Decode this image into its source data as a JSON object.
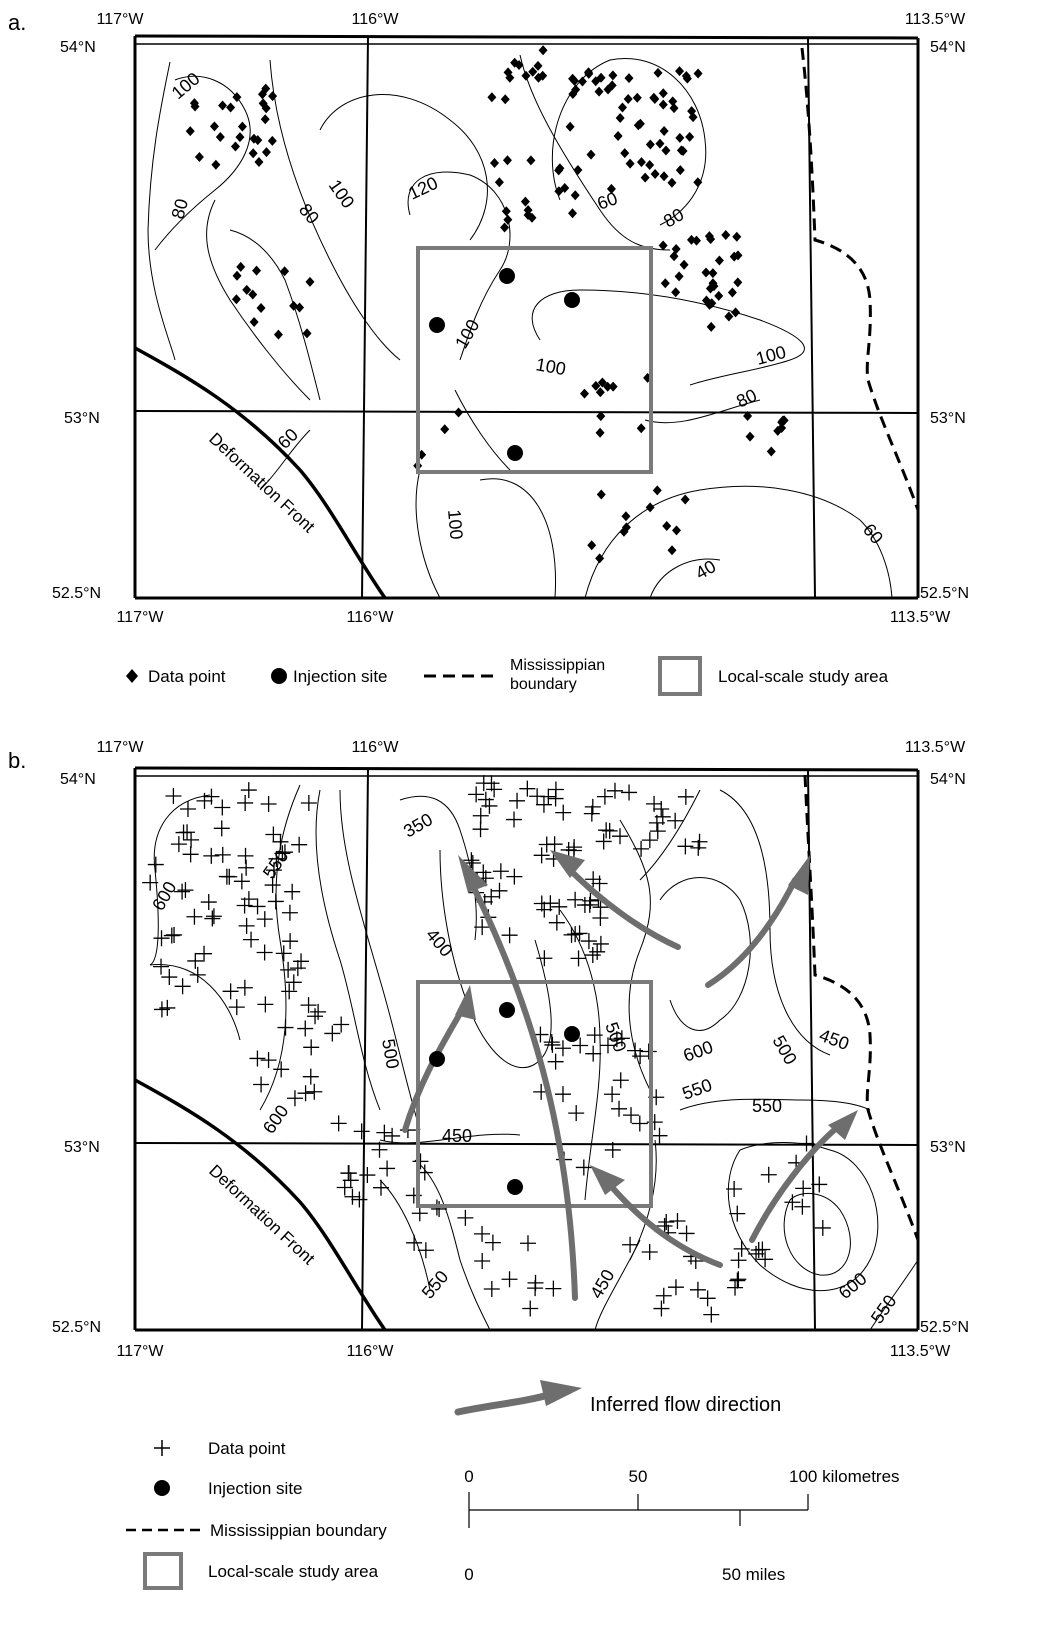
{
  "panel_a": {
    "label": "a.",
    "lon_top": [
      "117°W",
      "116°W",
      "113.5°W"
    ],
    "lon_bottom": [
      "117°W",
      "116°W",
      "113.5°W"
    ],
    "lat_left": [
      "54°N",
      "53°N",
      "52.5°N"
    ],
    "lat_right": [
      "54°N",
      "53°N",
      "52.5°N"
    ],
    "contour_labels": [
      "100",
      "80",
      "80",
      "100",
      "120",
      "60",
      "80",
      "100",
      "100",
      "100",
      "80",
      "60",
      "100",
      "40",
      "60"
    ],
    "deformation_front": "Deformation Front",
    "legend": {
      "data_point": "Data point",
      "injection_site": "Injection site",
      "mississippian_boundary": "Mississippian boundary",
      "local_scale": "Local-scale study area"
    }
  },
  "panel_b": {
    "label": "b.",
    "lon_top": [
      "117°W",
      "116°W",
      "113.5°W"
    ],
    "lon_bottom": [
      "117°W",
      "116°W",
      "113.5°W"
    ],
    "lat_left": [
      "54°N",
      "53°N",
      "52.5°N"
    ],
    "lat_right": [
      "54°N",
      "53°N",
      "52.5°N"
    ],
    "contour_labels": [
      "600",
      "550",
      "350",
      "400",
      "500",
      "500",
      "600",
      "500",
      "450",
      "550",
      "550",
      "450",
      "600",
      "450",
      "550",
      "600",
      "550"
    ],
    "deformation_front": "Deformation Front",
    "inferred_flow": "Inferred flow direction",
    "legend": {
      "data_point": "Data point",
      "injection_site": "Injection site",
      "mississippian_boundary": "Mississippian boundary",
      "local_scale": "Local-scale study area"
    },
    "scale_bar": {
      "km_ticks": [
        "0",
        "50",
        "100 kilometres"
      ],
      "mi_ticks": [
        "0",
        "50 miles"
      ]
    }
  },
  "colors": {
    "ink": "#000000",
    "grey": "#7a7a7a"
  }
}
